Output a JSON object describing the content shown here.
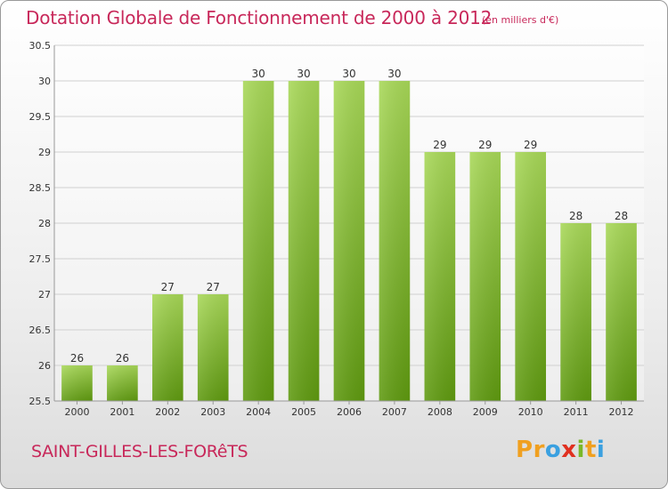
{
  "header": {
    "title": "Dotation Globale de Fonctionnement de 2000 à 2012",
    "unit": "(en milliers d'€)"
  },
  "footer": {
    "commune": "SAINT-GILLES-LES-FORêTS",
    "brand_letters": [
      "P",
      "r",
      "o",
      "x",
      "i",
      "t",
      "i"
    ],
    "brand_colors": [
      "#f0a020",
      "#f0a020",
      "#3aa0e0",
      "#e03020",
      "#7ab82a",
      "#f0a020",
      "#3aa0e0"
    ]
  },
  "colors": {
    "bar_top": "#a8d858",
    "bar_bottom": "#5f9a10",
    "accent": "#c8285a"
  },
  "chart_data": {
    "type": "bar",
    "categories": [
      "2000",
      "2001",
      "2002",
      "2003",
      "2004",
      "2005",
      "2006",
      "2007",
      "2008",
      "2009",
      "2010",
      "2011",
      "2012"
    ],
    "values": [
      26,
      26,
      27,
      27,
      30,
      30,
      30,
      30,
      29,
      29,
      29,
      28,
      28
    ],
    "data_labels": [
      "26",
      "26",
      "27",
      "27",
      "30",
      "30",
      "30",
      "30",
      "29",
      "29",
      "29",
      "28",
      "28"
    ],
    "title": "Dotation Globale de Fonctionnement de 2000 à 2012",
    "subtitle": "(en milliers d'€)",
    "ylim": [
      25.5,
      30.5
    ],
    "yticks": [
      "25.5",
      "26",
      "26.5",
      "27",
      "27.5",
      "28",
      "28.5",
      "29",
      "29.5",
      "30",
      "30.5"
    ],
    "grid": true
  }
}
